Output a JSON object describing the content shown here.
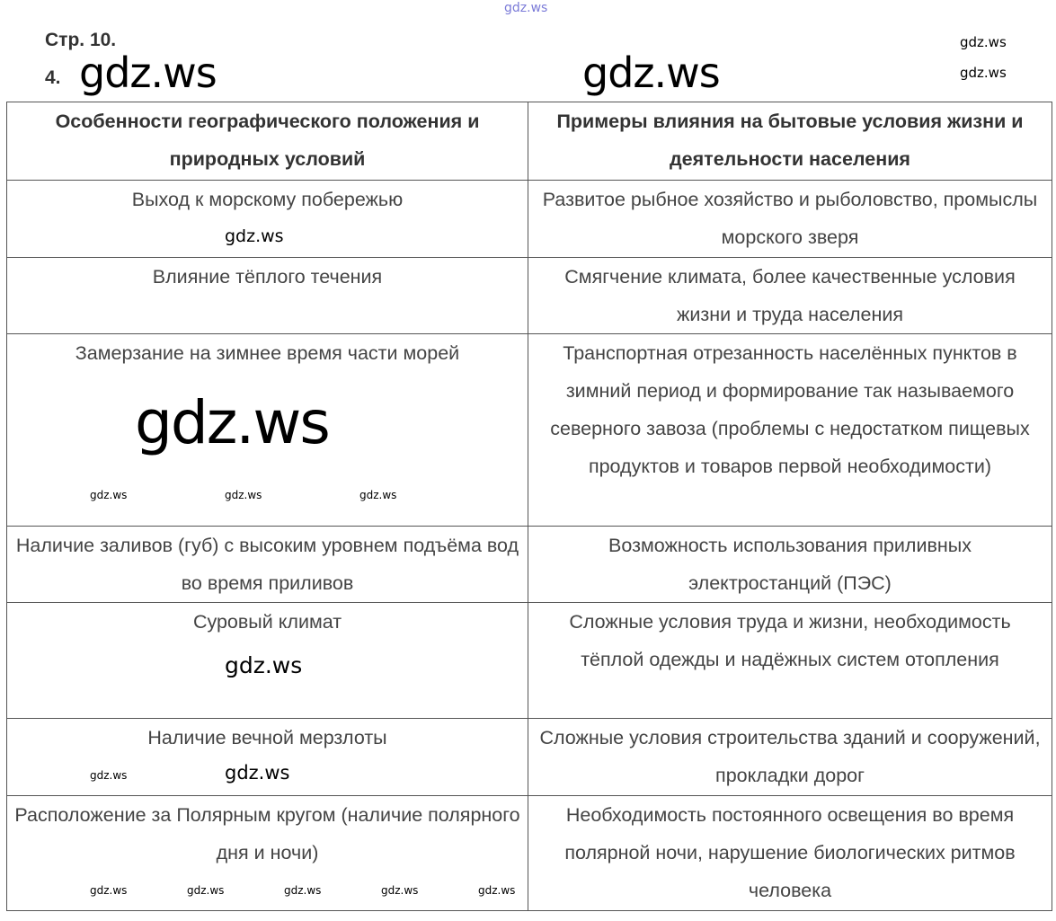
{
  "page_label": "Стр. 10.",
  "task_number": "4.",
  "table": {
    "headers": [
      "Особенности географического положения и природных условий",
      "Примеры влияния на бытовые условия жизни и деятельности населения"
    ],
    "rows": [
      [
        "Выход к морскому побережью",
        "Развитое рыбное хозяйство и рыболовство, промыслы морского зверя"
      ],
      [
        "Влияние тёплого течения",
        "Смягчение климата, более качественные условия жизни и труда населения"
      ],
      [
        "Замерзание на зимнее время части морей",
        "Транспортная отрезанность населённых пунктов в зимний период и формирование так называемого северного завоза (проблемы с недостатком пищевых продуктов и товаров первой необходимости)"
      ],
      [
        "Наличие заливов (губ) с высоким уровнем подъёма вод во время приливов",
        "Возможность использования приливных электростанций (ПЭС)"
      ],
      [
        "Суровый климат",
        "Сложные условия труда и жизни, необходимость тёплой одежды и надёжных систем отопления"
      ],
      [
        "Наличие вечной мерзлоты",
        "Сложные условия строительства зданий и сооружений, прокладки дорог"
      ],
      [
        "Расположение за Полярным кругом (наличие полярного дня и ночи)",
        "Необходимость постоянного освещения во время полярной ночи, нарушение биологических ритмов человека"
      ]
    ]
  },
  "watermark": "gdz.ws"
}
